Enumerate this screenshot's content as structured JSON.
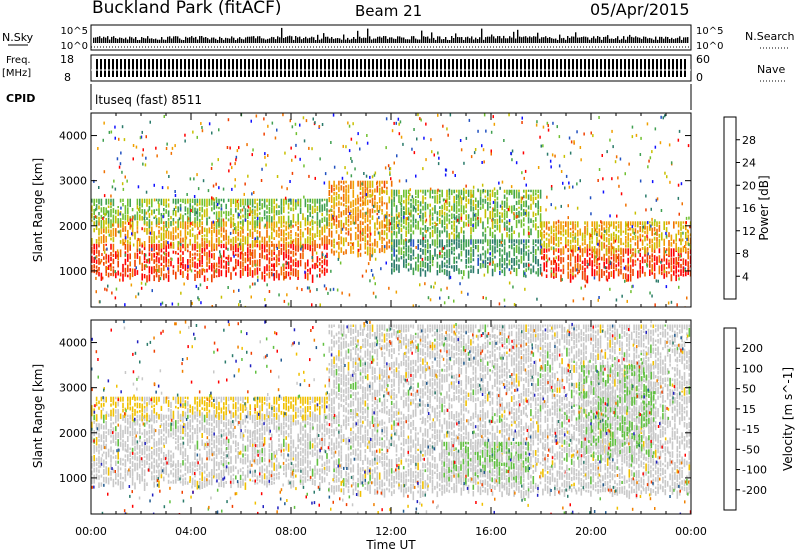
{
  "header": {
    "station": "Buckland Park (fitACF)",
    "beam": "Beam 21",
    "date": "05/Apr/2015"
  },
  "status_panel": {
    "nsky_label": "N.Sky",
    "nsearch_label": "N.Search",
    "noise_tick_high": "10^5",
    "noise_tick_low": "10^0",
    "freq_label_1": "Freq.",
    "freq_label_2": "[MHz]",
    "freq_tick_high": "18",
    "freq_tick_low": "8",
    "nave_label": "Nave",
    "nave_tick_high": "60",
    "nave_tick_low": "0",
    "cpid_label": "CPID",
    "cpid_value": "ltuseq (fast) 8511"
  },
  "x_axis": {
    "label": "Time UT",
    "ticks": [
      "00:00",
      "04:00",
      "08:00",
      "12:00",
      "16:00",
      "20:00",
      "00:00"
    ]
  },
  "colors": {
    "power_scale": [
      "#1010ff",
      "#2050c0",
      "#2a7a6a",
      "#40a050",
      "#70c030",
      "#c8c000",
      "#f0a000",
      "#f07000",
      "#f04000",
      "#ff0000"
    ],
    "velocity_scale": [
      "#2020c0",
      "#205a90",
      "#2a7a6a",
      "#60c040",
      "#c8c8c8",
      "#f0c000",
      "#f08000",
      "#f04000",
      "#ff0000"
    ]
  },
  "chart_data": [
    {
      "type": "heatmap",
      "name": "power",
      "ylabel": "Slant Range [km]",
      "xlabel": "",
      "x_range_hours": [
        0,
        24
      ],
      "ylim": [
        200,
        4500
      ],
      "y_ticks": [
        1000,
        2000,
        3000,
        4000
      ],
      "colorbar": {
        "label": "Power [dB]",
        "range": [
          0,
          32
        ],
        "ticks": [
          "4",
          "8",
          "12",
          "16",
          "20",
          "24",
          "28"
        ]
      },
      "bands": [
        {
          "t": [
            0,
            9.5
          ],
          "r": [
            900,
            1600
          ],
          "level": 28
        },
        {
          "t": [
            0,
            9.5
          ],
          "r": [
            1600,
            2100
          ],
          "level": 20
        },
        {
          "t": [
            0,
            9.5
          ],
          "r": [
            2100,
            2600
          ],
          "level": 14
        },
        {
          "t": [
            9.5,
            12
          ],
          "r": [
            1400,
            3000
          ],
          "level": 22
        },
        {
          "t": [
            12,
            18
          ],
          "r": [
            1800,
            2800
          ],
          "level": 14
        },
        {
          "t": [
            12,
            18
          ],
          "r": [
            1000,
            1700
          ],
          "level": 10
        },
        {
          "t": [
            18,
            24
          ],
          "r": [
            900,
            1500
          ],
          "level": 28
        },
        {
          "t": [
            18,
            24
          ],
          "r": [
            1500,
            2100
          ],
          "level": 20
        }
      ]
    },
    {
      "type": "heatmap",
      "name": "velocity",
      "ylabel": "Slant Range [km]",
      "xlabel": "Time UT",
      "x_range_hours": [
        0,
        24
      ],
      "ylim": [
        200,
        4500
      ],
      "y_ticks": [
        1000,
        2000,
        3000,
        4000
      ],
      "colorbar": {
        "label": "Velocity [m s^-1]",
        "range": [
          -250,
          250
        ],
        "ticks": [
          "200",
          "100",
          "50",
          "15",
          "-15",
          "-50",
          "-100",
          "-200"
        ]
      },
      "bands": [
        {
          "t": [
            0,
            9.5
          ],
          "r": [
            900,
            2400
          ],
          "level": 0
        },
        {
          "t": [
            0,
            9.5
          ],
          "r": [
            2400,
            2800
          ],
          "level": -40
        },
        {
          "t": [
            9.5,
            24
          ],
          "r": [
            700,
            4400
          ],
          "level": 0
        },
        {
          "t": [
            14,
            17.5
          ],
          "r": [
            1000,
            1800
          ],
          "level": 25
        },
        {
          "t": [
            19.5,
            22.5
          ],
          "r": [
            1500,
            3500
          ],
          "level": 25
        }
      ]
    }
  ]
}
